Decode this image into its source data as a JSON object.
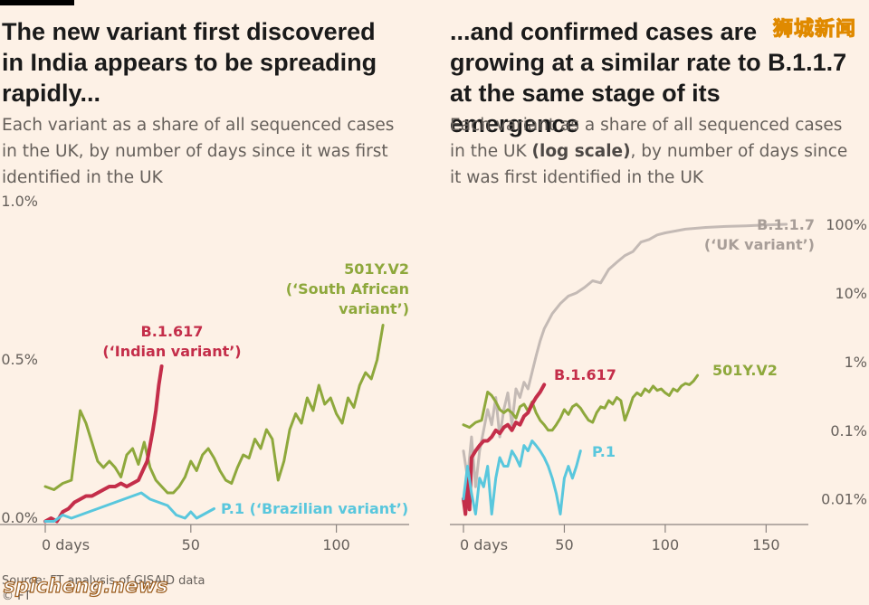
{
  "watermark_top": "狮城新闻",
  "watermark_bottom": "spicheng.news",
  "source": "Source: FT analysis of GISAID data",
  "copyright": "© FT",
  "chart_data": [
    {
      "type": "line",
      "title": "The new variant first discovered in India appears to be spreading rapidly...",
      "subtitle": "Each variant as a share of all sequenced cases in the UK, by number of days since it was first identified in the UK",
      "xlabel": "",
      "ylabel": "",
      "x_ticks": [
        {
          "v": 0,
          "label": "0 days"
        },
        {
          "v": 50,
          "label": "50"
        },
        {
          "v": 100,
          "label": "100"
        }
      ],
      "y_ticks": [
        {
          "v": 0,
          "label": "0.0%"
        },
        {
          "v": 0.5,
          "label": "0.5%"
        },
        {
          "v": 1.0,
          "label": "1.0%"
        }
      ],
      "xlim": [
        -2,
        125
      ],
      "ylim": [
        0,
        1.0
      ],
      "grid": false,
      "series": [
        {
          "key": "sa",
          "labels": [
            "501Y.V2",
            "(‘South African",
            "variant’)"
          ],
          "color": "#8ea83c",
          "x": [
            0,
            3,
            6,
            9,
            12,
            14,
            16,
            18,
            20,
            22,
            24,
            26,
            28,
            30,
            32,
            34,
            36,
            38,
            40,
            42,
            44,
            46,
            48,
            50,
            52,
            54,
            56,
            58,
            60,
            62,
            64,
            66,
            68,
            70,
            72,
            74,
            76,
            78,
            80,
            82,
            84,
            86,
            88,
            90,
            92,
            94,
            96,
            98,
            100,
            102,
            104,
            106,
            108,
            110,
            112,
            114,
            116
          ],
          "values": [
            0.12,
            0.11,
            0.13,
            0.14,
            0.36,
            0.32,
            0.26,
            0.2,
            0.18,
            0.2,
            0.18,
            0.15,
            0.22,
            0.24,
            0.19,
            0.26,
            0.18,
            0.14,
            0.12,
            0.1,
            0.1,
            0.12,
            0.15,
            0.2,
            0.17,
            0.22,
            0.24,
            0.21,
            0.17,
            0.14,
            0.13,
            0.18,
            0.22,
            0.21,
            0.27,
            0.24,
            0.3,
            0.27,
            0.14,
            0.2,
            0.3,
            0.35,
            0.32,
            0.4,
            0.36,
            0.44,
            0.38,
            0.4,
            0.35,
            0.32,
            0.4,
            0.37,
            0.44,
            0.48,
            0.46,
            0.52,
            0.63
          ]
        },
        {
          "key": "in",
          "labels": [
            "B.1.617",
            "(‘Indian variant’)"
          ],
          "color": "#c42e4a",
          "x": [
            0,
            2,
            4,
            6,
            8,
            10,
            12,
            14,
            16,
            18,
            20,
            22,
            24,
            26,
            28,
            30,
            32,
            34,
            35,
            36,
            37,
            38,
            39,
            40
          ],
          "values": [
            0.01,
            0.02,
            0.01,
            0.04,
            0.05,
            0.07,
            0.08,
            0.09,
            0.09,
            0.1,
            0.11,
            0.12,
            0.12,
            0.13,
            0.12,
            0.13,
            0.14,
            0.18,
            0.2,
            0.25,
            0.3,
            0.36,
            0.44,
            0.5
          ]
        },
        {
          "key": "br",
          "labels": [
            "P.1 (‘Brazilian variant’)"
          ],
          "color": "#59c7dd",
          "x": [
            0,
            3,
            6,
            9,
            12,
            15,
            18,
            21,
            24,
            27,
            30,
            33,
            36,
            39,
            42,
            45,
            48,
            50,
            52,
            54,
            56,
            58
          ],
          "values": [
            0.01,
            0.01,
            0.03,
            0.02,
            0.03,
            0.04,
            0.05,
            0.06,
            0.07,
            0.08,
            0.09,
            0.1,
            0.08,
            0.07,
            0.06,
            0.03,
            0.02,
            0.04,
            0.02,
            0.03,
            0.04,
            0.05
          ]
        }
      ]
    },
    {
      "type": "line",
      "title": "...and confirmed cases are growing at a similar rate to B.1.1.7 at the same stage of its emergence",
      "subtitle_before": "Each variant as a share of all sequenced cases in the UK ",
      "subtitle_bold": "(log scale)",
      "subtitle_after": ", by number of days since it was first identified in the UK",
      "xlabel": "",
      "ylabel": "",
      "scale_y": "log",
      "x_ticks": [
        {
          "v": 0,
          "label": "0 days"
        },
        {
          "v": 50,
          "label": "50"
        },
        {
          "v": 100,
          "label": "100"
        },
        {
          "v": 150,
          "label": "150"
        }
      ],
      "y_ticks": [
        {
          "v": 0.01,
          "label": "0.01%"
        },
        {
          "v": 0.1,
          "label": "0.1%"
        },
        {
          "v": 1,
          "label": "1%"
        },
        {
          "v": 10,
          "label": "10%"
        },
        {
          "v": 100,
          "label": "100%"
        }
      ],
      "xlim": [
        -2,
        166
      ],
      "ylim": [
        0.0045,
        100
      ],
      "grid": false,
      "series": [
        {
          "key": "uk",
          "labels": [
            "B.1.1.7",
            "(‘UK variant’)"
          ],
          "color": "#c4bab5",
          "x": [
            0,
            2,
            4,
            6,
            8,
            10,
            12,
            14,
            16,
            18,
            20,
            22,
            24,
            26,
            28,
            30,
            32,
            34,
            36,
            38,
            40,
            44,
            48,
            52,
            56,
            60,
            64,
            68,
            72,
            76,
            80,
            84,
            88,
            92,
            96,
            100,
            110,
            120,
            130,
            140,
            150,
            160
          ],
          "values": [
            0.05,
            0.02,
            0.08,
            0.015,
            0.05,
            0.1,
            0.2,
            0.12,
            0.3,
            0.08,
            0.2,
            0.35,
            0.12,
            0.4,
            0.3,
            0.5,
            0.4,
            0.7,
            1.2,
            2,
            3,
            5,
            7,
            9,
            10,
            12,
            15,
            14,
            22,
            28,
            35,
            40,
            55,
            60,
            70,
            75,
            85,
            90,
            93,
            95,
            98,
            100
          ]
        },
        {
          "key": "sa",
          "labels": [
            "501Y.V2"
          ],
          "color": "#8ea83c",
          "x": [
            0,
            3,
            6,
            9,
            12,
            14,
            16,
            18,
            20,
            22,
            24,
            26,
            28,
            30,
            32,
            34,
            36,
            38,
            40,
            42,
            44,
            46,
            48,
            50,
            52,
            54,
            56,
            58,
            60,
            62,
            64,
            66,
            68,
            70,
            72,
            74,
            76,
            78,
            80,
            82,
            84,
            86,
            88,
            90,
            92,
            94,
            96,
            98,
            100,
            102,
            104,
            106,
            108,
            110,
            112,
            114,
            116
          ],
          "values": [
            0.12,
            0.11,
            0.13,
            0.14,
            0.36,
            0.32,
            0.26,
            0.2,
            0.18,
            0.2,
            0.18,
            0.15,
            0.22,
            0.24,
            0.19,
            0.26,
            0.18,
            0.14,
            0.12,
            0.1,
            0.1,
            0.12,
            0.15,
            0.2,
            0.17,
            0.22,
            0.24,
            0.21,
            0.17,
            0.14,
            0.13,
            0.18,
            0.22,
            0.21,
            0.27,
            0.24,
            0.3,
            0.27,
            0.14,
            0.2,
            0.3,
            0.35,
            0.32,
            0.4,
            0.36,
            0.44,
            0.38,
            0.4,
            0.35,
            0.32,
            0.4,
            0.37,
            0.44,
            0.48,
            0.46,
            0.52,
            0.63
          ]
        },
        {
          "key": "in",
          "labels": [
            "B.1.617"
          ],
          "color": "#c42e4a",
          "x": [
            0,
            1,
            2,
            3,
            4,
            6,
            8,
            10,
            12,
            14,
            16,
            18,
            20,
            22,
            24,
            26,
            28,
            30,
            32,
            34,
            36,
            38,
            40
          ],
          "values": [
            0.01,
            0.006,
            0.02,
            0.007,
            0.04,
            0.05,
            0.06,
            0.07,
            0.07,
            0.08,
            0.1,
            0.09,
            0.11,
            0.12,
            0.1,
            0.13,
            0.12,
            0.16,
            0.18,
            0.24,
            0.3,
            0.36,
            0.46
          ]
        },
        {
          "key": "br",
          "labels": [
            "P.1"
          ],
          "color": "#59c7dd",
          "x": [
            0,
            2,
            4,
            6,
            8,
            10,
            12,
            14,
            16,
            18,
            20,
            22,
            24,
            26,
            28,
            30,
            32,
            34,
            36,
            38,
            40,
            42,
            44,
            46,
            48,
            50,
            52,
            54,
            56,
            58
          ],
          "values": [
            0.01,
            0.03,
            0.012,
            0.006,
            0.02,
            0.015,
            0.03,
            0.006,
            0.02,
            0.04,
            0.03,
            0.03,
            0.05,
            0.04,
            0.03,
            0.06,
            0.05,
            0.07,
            0.06,
            0.05,
            0.04,
            0.03,
            0.02,
            0.012,
            0.006,
            0.02,
            0.03,
            0.02,
            0.03,
            0.05
          ]
        }
      ]
    }
  ]
}
